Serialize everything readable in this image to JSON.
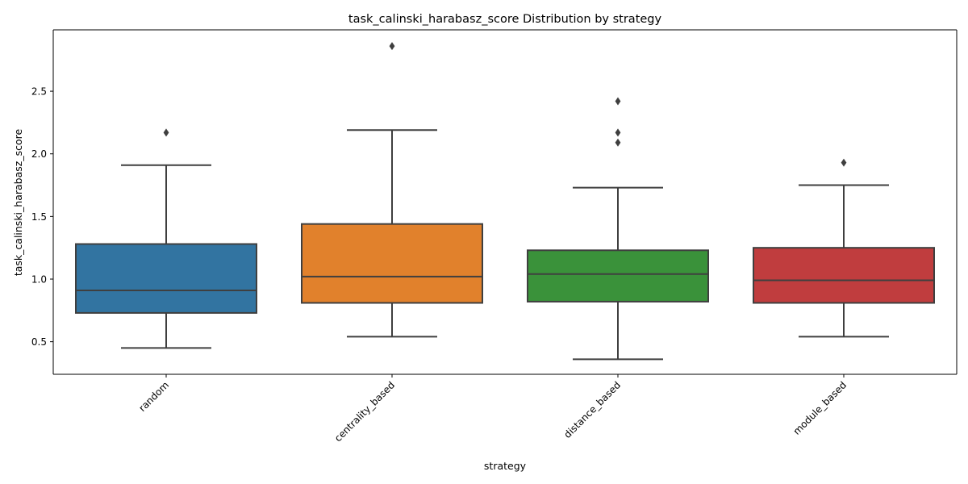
{
  "chart_data": {
    "type": "box",
    "title": "task_calinski_harabasz_score Distribution by strategy",
    "xlabel": "strategy",
    "ylabel": "task_calinski_harabasz_score",
    "ylim": [
      0.24,
      2.99
    ],
    "yticks": [
      0.5,
      1.0,
      1.5,
      2.0,
      2.5
    ],
    "ytick_labels": [
      "0.5",
      "1.0",
      "1.5",
      "2.0",
      "2.5"
    ],
    "grid": false,
    "legend": "none",
    "categories": [
      "random",
      "centrality_based",
      "distance_based",
      "module_based"
    ],
    "boxes": [
      {
        "category": "random",
        "color": "#3274a1",
        "whisker_low": 0.45,
        "q1": 0.73,
        "median": 0.91,
        "q3": 1.28,
        "whisker_high": 1.91,
        "outliers": [
          2.17
        ]
      },
      {
        "category": "centrality_based",
        "color": "#e1812c",
        "whisker_low": 0.54,
        "q1": 0.81,
        "median": 1.02,
        "q3": 1.44,
        "whisker_high": 2.19,
        "outliers": [
          2.86
        ]
      },
      {
        "category": "distance_based",
        "color": "#3a923a",
        "whisker_low": 0.36,
        "q1": 0.82,
        "median": 1.04,
        "q3": 1.23,
        "whisker_high": 1.73,
        "outliers": [
          2.09,
          2.17,
          2.42
        ]
      },
      {
        "category": "module_based",
        "color": "#c03d3e",
        "whisker_low": 0.54,
        "q1": 0.81,
        "median": 0.99,
        "q3": 1.25,
        "whisker_high": 1.75,
        "outliers": [
          1.93
        ]
      }
    ]
  }
}
